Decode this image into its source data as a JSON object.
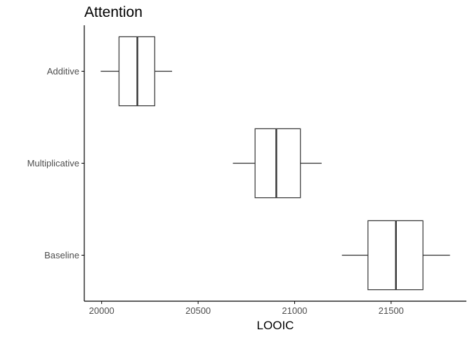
{
  "chart_data": {
    "type": "boxplot",
    "orientation": "horizontal",
    "title": "Attention",
    "xlabel": "LOOIC",
    "ylabel": "",
    "xlim": [
      19910,
      21890
    ],
    "x_ticks": [
      20000,
      20500,
      21000,
      21500
    ],
    "x_tick_labels": [
      "20000",
      "20500",
      "21000",
      "21500"
    ],
    "grid": false,
    "legend": "none",
    "categories": [
      "Additive",
      "Multiplicative",
      "Baseline"
    ],
    "boxes": [
      {
        "category": "Additive",
        "whisker_low": 19995,
        "q1": 20090,
        "median": 20185,
        "q3": 20275,
        "whisker_high": 20365
      },
      {
        "category": "Multiplicative",
        "whisker_low": 20680,
        "q1": 20795,
        "median": 20905,
        "q3": 21030,
        "whisker_high": 21140
      },
      {
        "category": "Baseline",
        "whisker_low": 21245,
        "q1": 21380,
        "median": 21525,
        "q3": 21665,
        "whisker_high": 21805
      }
    ],
    "colors": {
      "box_stroke": "#333333",
      "box_fill": "#ffffff",
      "axis": "#000000",
      "tick_label": "#4d4d4d"
    }
  }
}
